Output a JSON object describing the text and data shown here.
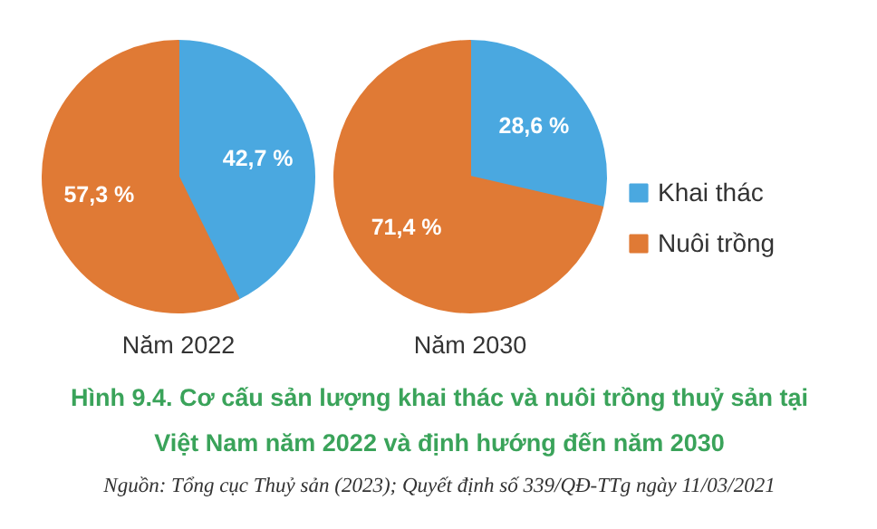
{
  "chart_data": [
    {
      "type": "pie",
      "title": "Năm 2022",
      "categories": [
        "Khai thác",
        "Nuôi trồng"
      ],
      "values": [
        42.7,
        57.3
      ],
      "colors": [
        "#4aa8e0",
        "#e07a35"
      ],
      "value_labels": [
        "42,7 %",
        "57,3 %"
      ],
      "legend": "right",
      "annotations": [
        "Hình 9.4. Cơ cấu sản lượng khai thác và nuôi trồng thuỷ sản tại",
        "Việt Nam năm 2022 và định hướng đến năm 2030",
        "Nguồn: Tổng cục Thuỷ sản (2023); Quyết định số 339/QĐ-TTg ngày 11/03/2021"
      ]
    },
    {
      "type": "pie",
      "title": "Năm 2030",
      "categories": [
        null,
        null
      ],
      "values": [
        28.6,
        71.4
      ],
      "colors": [
        "#4aa8e0",
        "#e07a35"
      ],
      "value_labels": [
        "28,6 %",
        "71,4 %"
      ]
    }
  ]
}
